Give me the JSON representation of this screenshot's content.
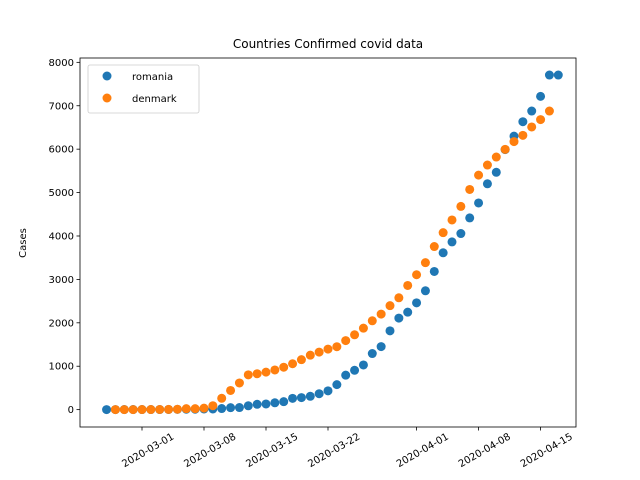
{
  "chart_data": {
    "type": "scatter",
    "title": "Countries Confirmed covid data",
    "xlabel": "",
    "ylabel": "Cases",
    "xlim": [
      "2020-02-23",
      "2020-04-19"
    ],
    "ylim": [
      -400,
      8100
    ],
    "x_ticks": [
      "2020-03-01",
      "2020-03-08",
      "2020-03-15",
      "2020-03-22",
      "2020-04-01",
      "2020-04-08",
      "2020-04-15"
    ],
    "y_ticks": [
      0,
      1000,
      2000,
      3000,
      4000,
      5000,
      6000,
      7000,
      8000
    ],
    "grid": false,
    "legend_position": "top-left",
    "series": [
      {
        "name": "romania",
        "color": "#1f77b4",
        "points": [
          [
            "2020-02-26",
            1
          ],
          [
            "2020-02-27",
            1
          ],
          [
            "2020-02-28",
            3
          ],
          [
            "2020-02-29",
            3
          ],
          [
            "2020-03-01",
            3
          ],
          [
            "2020-03-02",
            3
          ],
          [
            "2020-03-03",
            3
          ],
          [
            "2020-03-04",
            4
          ],
          [
            "2020-03-05",
            6
          ],
          [
            "2020-03-06",
            9
          ],
          [
            "2020-03-07",
            9
          ],
          [
            "2020-03-08",
            15
          ],
          [
            "2020-03-09",
            15
          ],
          [
            "2020-03-10",
            25
          ],
          [
            "2020-03-11",
            45
          ],
          [
            "2020-03-12",
            49
          ],
          [
            "2020-03-13",
            89
          ],
          [
            "2020-03-14",
            123
          ],
          [
            "2020-03-15",
            131
          ],
          [
            "2020-03-16",
            158
          ],
          [
            "2020-03-17",
            184
          ],
          [
            "2020-03-18",
            260
          ],
          [
            "2020-03-19",
            277
          ],
          [
            "2020-03-20",
            308
          ],
          [
            "2020-03-21",
            367
          ],
          [
            "2020-03-22",
            433
          ],
          [
            "2020-03-23",
            576
          ],
          [
            "2020-03-24",
            794
          ],
          [
            "2020-03-25",
            906
          ],
          [
            "2020-03-26",
            1029
          ],
          [
            "2020-03-27",
            1292
          ],
          [
            "2020-03-28",
            1452
          ],
          [
            "2020-03-29",
            1815
          ],
          [
            "2020-03-30",
            2109
          ],
          [
            "2020-03-31",
            2245
          ],
          [
            "2020-04-01",
            2460
          ],
          [
            "2020-04-02",
            2738
          ],
          [
            "2020-04-03",
            3183
          ],
          [
            "2020-04-04",
            3613
          ],
          [
            "2020-04-05",
            3864
          ],
          [
            "2020-04-06",
            4057
          ],
          [
            "2020-04-07",
            4417
          ],
          [
            "2020-04-08",
            4761
          ],
          [
            "2020-04-09",
            5202
          ],
          [
            "2020-04-10",
            5467
          ],
          [
            "2020-04-11",
            5990
          ],
          [
            "2020-04-12",
            6300
          ],
          [
            "2020-04-13",
            6633
          ],
          [
            "2020-04-14",
            6879
          ],
          [
            "2020-04-15",
            7216
          ],
          [
            "2020-04-16",
            7707
          ],
          [
            "2020-04-17",
            7707
          ]
        ]
      },
      {
        "name": "denmark",
        "color": "#ff7f0e",
        "points": [
          [
            "2020-02-27",
            1
          ],
          [
            "2020-02-28",
            1
          ],
          [
            "2020-02-29",
            1
          ],
          [
            "2020-03-01",
            2
          ],
          [
            "2020-03-02",
            3
          ],
          [
            "2020-03-03",
            4
          ],
          [
            "2020-03-04",
            5
          ],
          [
            "2020-03-05",
            10
          ],
          [
            "2020-03-06",
            23
          ],
          [
            "2020-03-07",
            23
          ],
          [
            "2020-03-08",
            35
          ],
          [
            "2020-03-09",
            90
          ],
          [
            "2020-03-10",
            262
          ],
          [
            "2020-03-11",
            442
          ],
          [
            "2020-03-12",
            615
          ],
          [
            "2020-03-13",
            801
          ],
          [
            "2020-03-14",
            827
          ],
          [
            "2020-03-15",
            864
          ],
          [
            "2020-03-16",
            914
          ],
          [
            "2020-03-17",
            977
          ],
          [
            "2020-03-18",
            1057
          ],
          [
            "2020-03-19",
            1151
          ],
          [
            "2020-03-20",
            1255
          ],
          [
            "2020-03-21",
            1326
          ],
          [
            "2020-03-22",
            1395
          ],
          [
            "2020-03-23",
            1450
          ],
          [
            "2020-03-24",
            1591
          ],
          [
            "2020-03-25",
            1724
          ],
          [
            "2020-03-26",
            1877
          ],
          [
            "2020-03-27",
            2046
          ],
          [
            "2020-03-28",
            2201
          ],
          [
            "2020-03-29",
            2395
          ],
          [
            "2020-03-30",
            2577
          ],
          [
            "2020-03-31",
            2860
          ],
          [
            "2020-04-01",
            3107
          ],
          [
            "2020-04-02",
            3386
          ],
          [
            "2020-04-03",
            3757
          ],
          [
            "2020-04-04",
            4077
          ],
          [
            "2020-04-05",
            4369
          ],
          [
            "2020-04-06",
            4681
          ],
          [
            "2020-04-07",
            5071
          ],
          [
            "2020-04-08",
            5402
          ],
          [
            "2020-04-09",
            5635
          ],
          [
            "2020-04-10",
            5819
          ],
          [
            "2020-04-11",
            5996
          ],
          [
            "2020-04-12",
            6174
          ],
          [
            "2020-04-13",
            6318
          ],
          [
            "2020-04-14",
            6511
          ],
          [
            "2020-04-15",
            6681
          ],
          [
            "2020-04-16",
            6879
          ]
        ]
      }
    ]
  }
}
